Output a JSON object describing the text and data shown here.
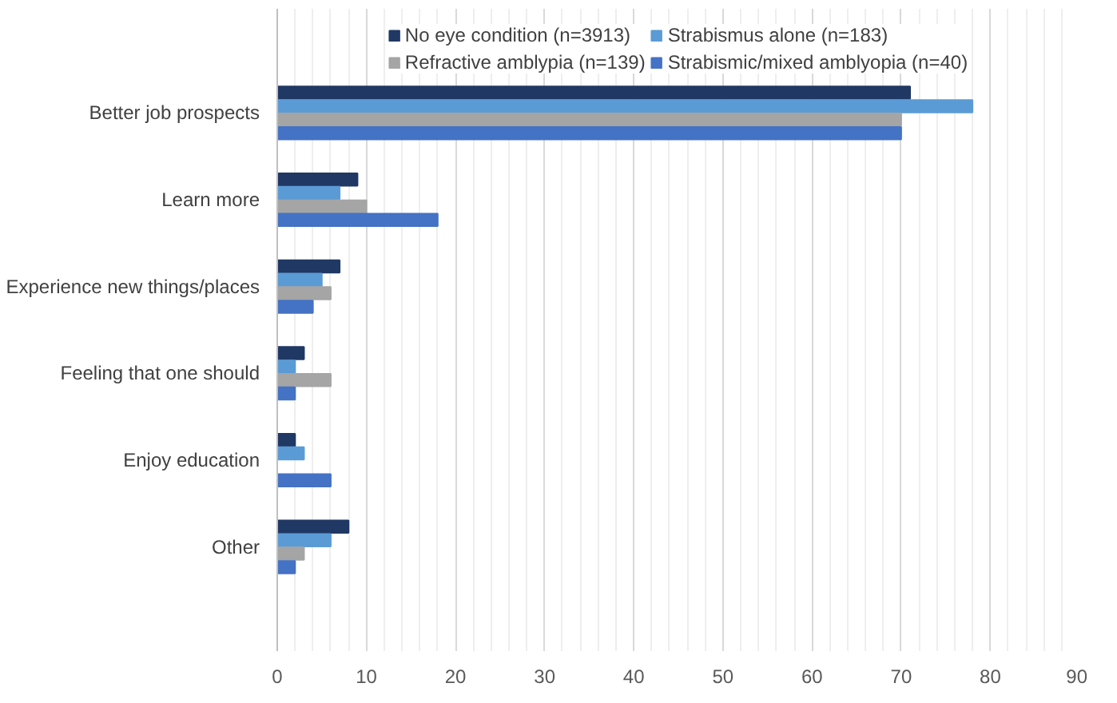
{
  "chart_data": {
    "type": "bar",
    "orientation": "horizontal",
    "categories": [
      "Better job prospects",
      "Learn more",
      "Experience new things/places",
      "Feeling that one should",
      "Enjoy education",
      "Other"
    ],
    "series": [
      {
        "name": "No eye condition (n=3913)",
        "color": "#203864",
        "values": [
          71,
          9,
          7,
          3,
          2,
          8
        ]
      },
      {
        "name": "Strabismus alone (n=183)",
        "color": "#5b9bd5",
        "values": [
          78,
          7,
          5,
          2,
          3,
          6
        ]
      },
      {
        "name": "Refractive amblypia (n=139)",
        "color": "#a5a5a5",
        "values": [
          70,
          10,
          6,
          6,
          null,
          3
        ]
      },
      {
        "name": "Strabismic/mixed amblyopia (n=40)",
        "color": "#4472c4",
        "values": [
          70,
          18,
          4,
          2,
          6,
          2
        ]
      }
    ],
    "xlim": [
      0,
      90
    ],
    "xticks": [
      0,
      {
        "value": 2,
        "label": null
      },
      {
        "value": 4,
        "label": null
      },
      {
        "value": 6,
        "label": null
      },
      {
        "value": 8,
        "label": null
      },
      10,
      {
        "value": 12,
        "label": null
      },
      {
        "value": 14,
        "label": null
      },
      {
        "value": 16,
        "label": null
      },
      {
        "value": 18,
        "label": null
      },
      20,
      {
        "value": 22,
        "label": null
      },
      {
        "value": 24,
        "label": null
      },
      {
        "value": 26,
        "label": null
      },
      {
        "value": 28,
        "label": null
      },
      30,
      {
        "value": 32,
        "label": null
      },
      {
        "value": 34,
        "label": null
      },
      {
        "value": 36,
        "label": null
      },
      {
        "value": 38,
        "label": null
      },
      40,
      {
        "value": 42,
        "label": null
      },
      {
        "value": 44,
        "label": null
      },
      {
        "value": 46,
        "label": null
      },
      {
        "value": 48,
        "label": null
      },
      50,
      {
        "value": 52,
        "label": null
      },
      {
        "value": 54,
        "label": null
      },
      {
        "value": 56,
        "label": null
      },
      {
        "value": 58,
        "label": null
      },
      60,
      {
        "value": 62,
        "label": null
      },
      {
        "value": 64,
        "label": null
      },
      {
        "value": 66,
        "label": null
      },
      {
        "value": 68,
        "label": null
      },
      70,
      {
        "value": 72,
        "label": null
      },
      {
        "value": 74,
        "label": null
      },
      {
        "value": 76,
        "label": null
      },
      {
        "value": 78,
        "label": null
      },
      80,
      {
        "value": 82,
        "label": null
      },
      {
        "value": 84,
        "label": null
      },
      {
        "value": 86,
        "label": null
      },
      {
        "value": 88,
        "label": null
      },
      90
    ],
    "grid": "x",
    "legend": "top"
  }
}
